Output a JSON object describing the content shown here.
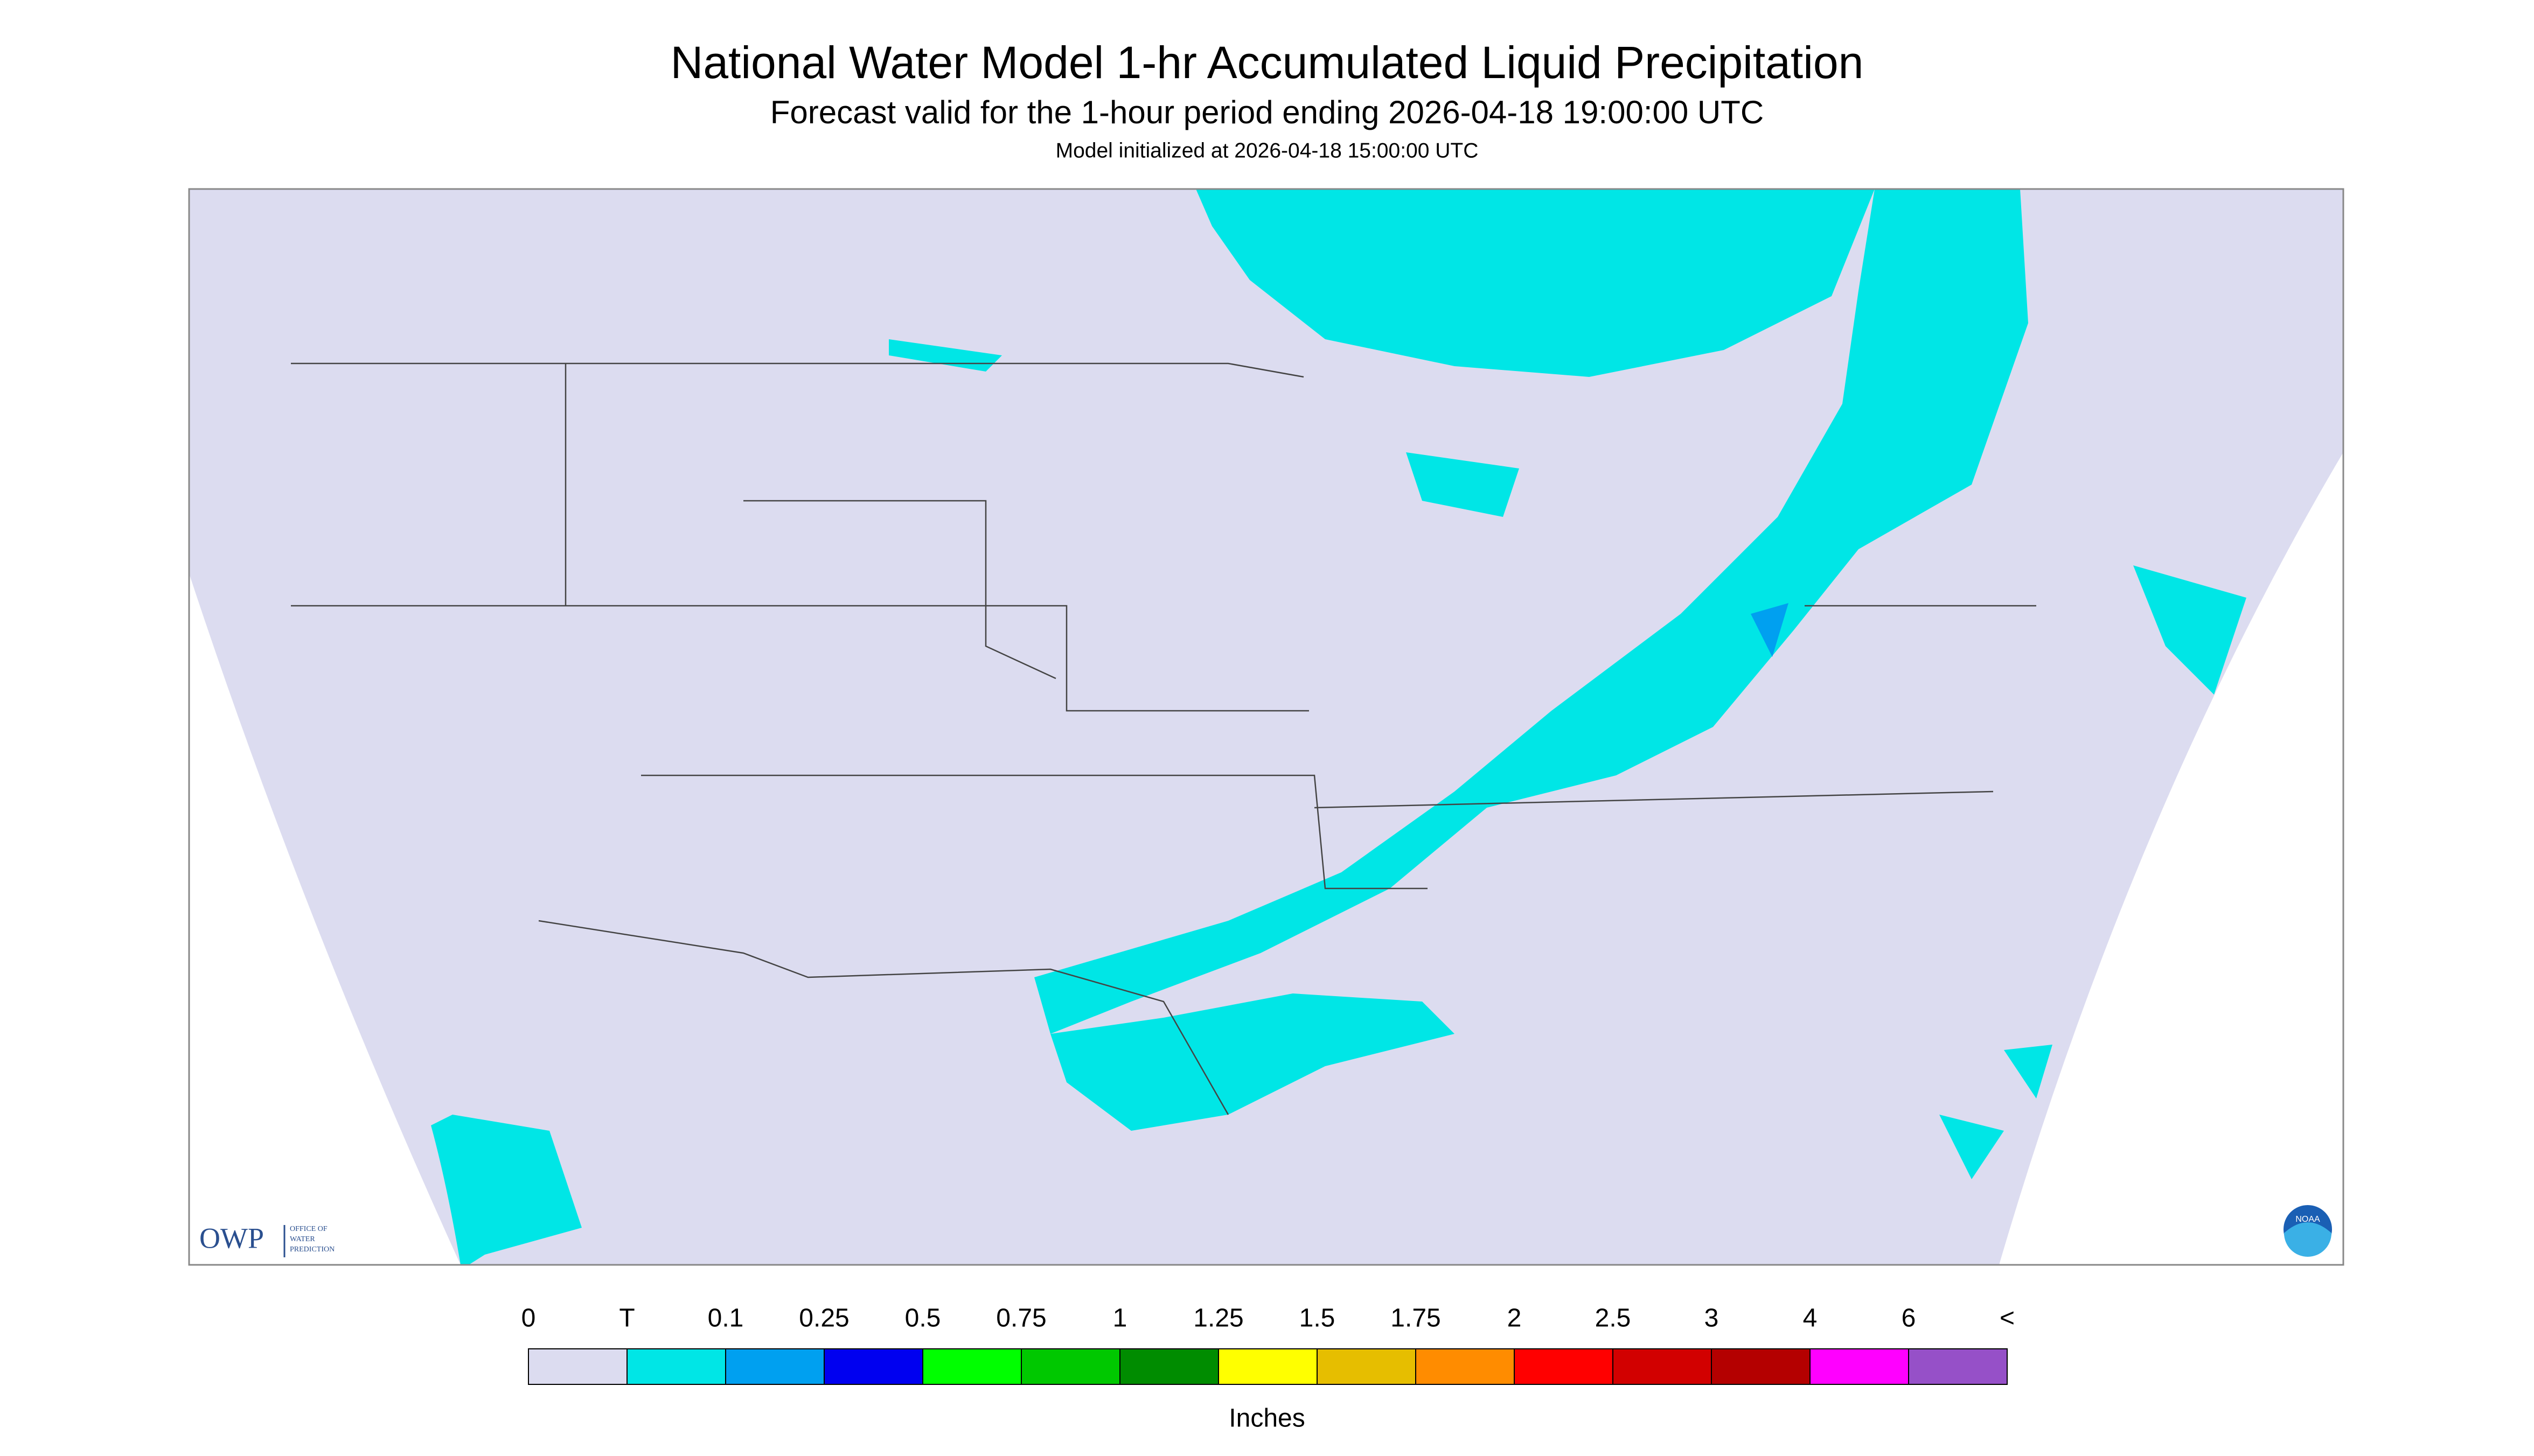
{
  "header": {
    "title": "National Water Model 1-hr Accumulated Liquid Precipitation",
    "subtitle": "Forecast valid for the 1-hour period ending 2026-04-18 19:00:00 UTC",
    "note": "Model initialized at 2026-04-18 15:00:00 UTC"
  },
  "logos": {
    "owp": "OWP",
    "owp_name": [
      "OFFICE OF",
      "WATER",
      "PREDICTION"
    ],
    "noaa": "NOAA"
  },
  "legend": {
    "labels": [
      "0",
      "T",
      "0.1",
      "0.25",
      "0.5",
      "0.75",
      "1",
      "1.25",
      "1.5",
      "1.75",
      "2",
      "2.5",
      "3",
      "4",
      "6",
      "<"
    ],
    "colors": [
      "#dcdcf0",
      "#00e6e6",
      "#00a0f0",
      "#0000f0",
      "#00ff00",
      "#00c800",
      "#008c00",
      "#ffff00",
      "#e6be00",
      "#ff8c00",
      "#ff0000",
      "#d20000",
      "#b40000",
      "#ff00ff",
      "#9650c8"
    ],
    "unit": "Inches"
  }
}
